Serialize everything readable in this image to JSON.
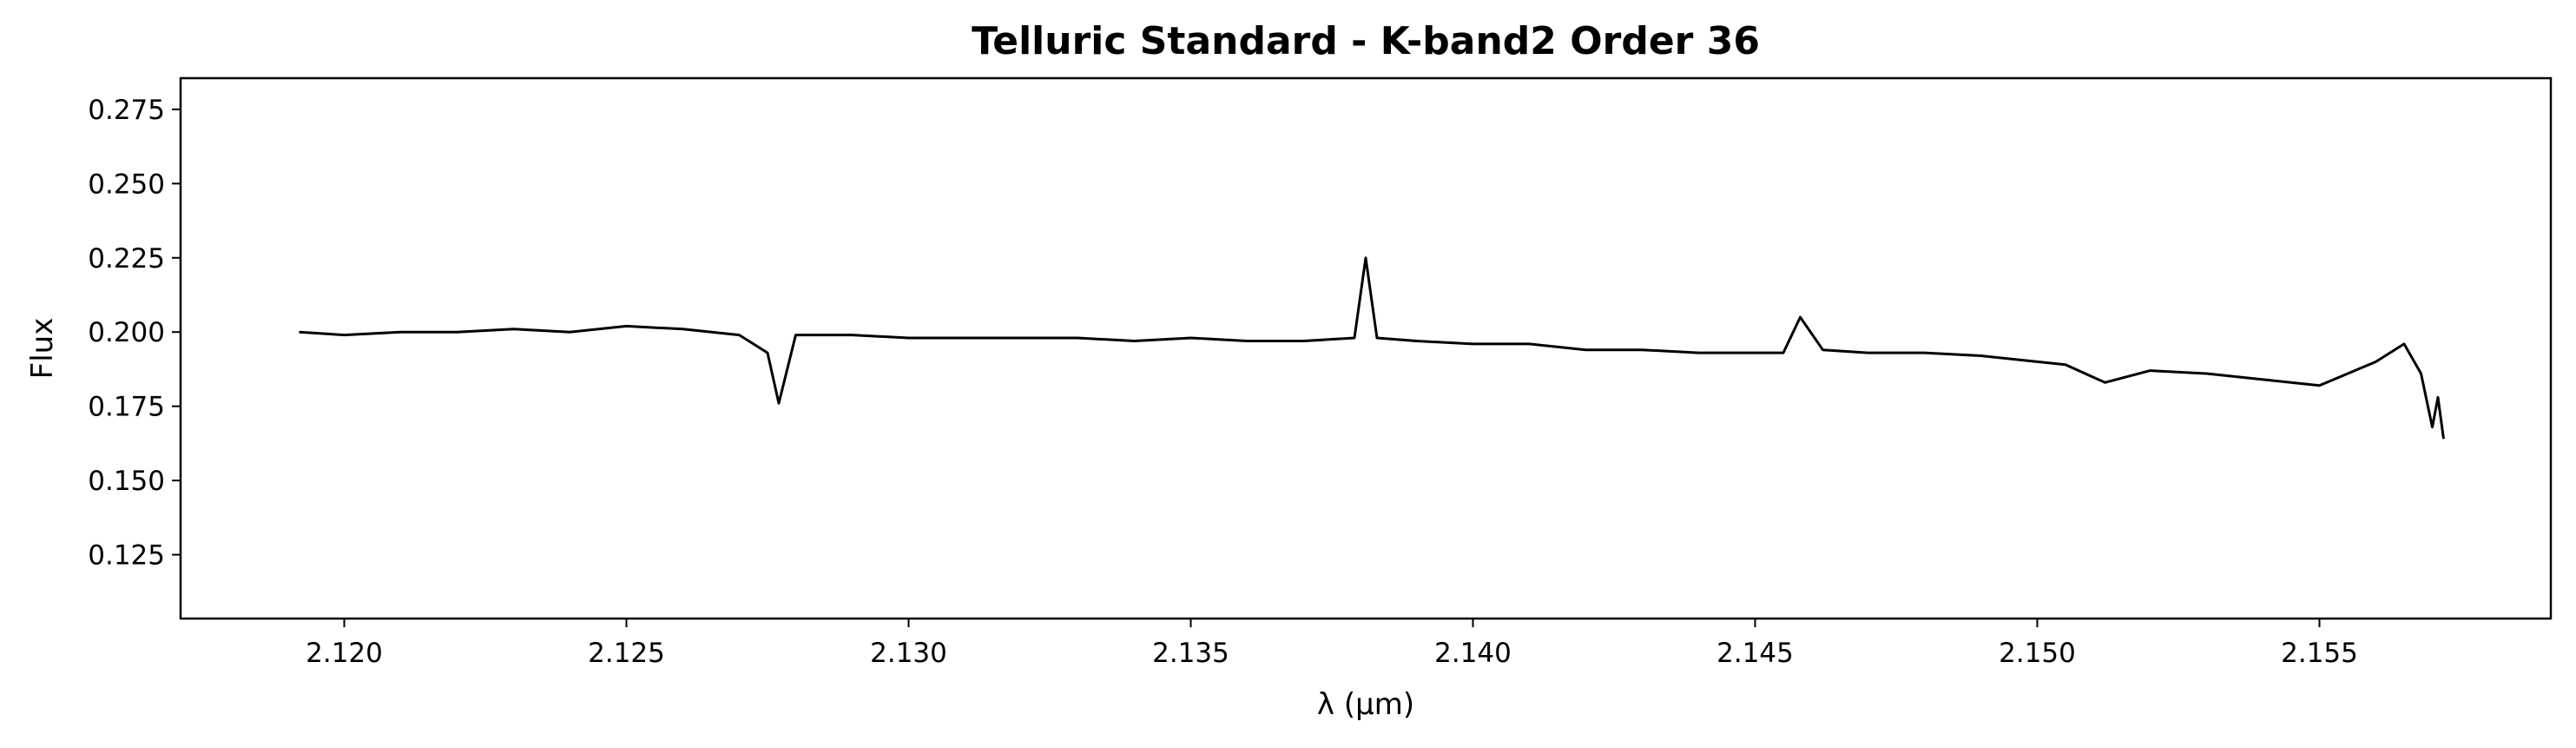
{
  "chart_data": {
    "type": "line",
    "title": "Telluric Standard - K-band2 Order 36",
    "xlabel": "λ (μm)",
    "ylabel": "Flux",
    "xlim": [
      2.1171,
      2.1591
    ],
    "ylim": [
      0.1035,
      0.2855
    ],
    "xticks": [
      "2.120",
      "2.125",
      "2.130",
      "2.135",
      "2.140",
      "2.145",
      "2.150",
      "2.155"
    ],
    "yticks": [
      "0.125",
      "0.150",
      "0.175",
      "0.200",
      "0.225",
      "0.250",
      "0.275"
    ],
    "grid": false,
    "line_color": "#000000",
    "series": [
      {
        "x": [
          2.1192,
          2.12,
          2.121,
          2.122,
          2.123,
          2.124,
          2.125,
          2.126,
          2.127,
          2.1275,
          2.1277,
          2.128,
          2.129,
          2.13,
          2.131,
          2.132,
          2.133,
          2.134,
          2.135,
          2.136,
          2.137,
          2.1379,
          2.1381,
          2.1383,
          2.139,
          2.14,
          2.141,
          2.142,
          2.143,
          2.144,
          2.145,
          2.1455,
          2.1458,
          2.1462,
          2.147,
          2.148,
          2.149,
          2.15,
          2.1505,
          2.1512,
          2.152,
          2.153,
          2.154,
          2.155,
          2.156,
          2.1565,
          2.1568,
          2.157,
          2.1571,
          2.1572
        ],
        "y": [
          0.2,
          0.199,
          0.2,
          0.2,
          0.201,
          0.2,
          0.202,
          0.201,
          0.199,
          0.193,
          0.176,
          0.199,
          0.199,
          0.198,
          0.198,
          0.198,
          0.198,
          0.197,
          0.198,
          0.197,
          0.197,
          0.198,
          0.225,
          0.198,
          0.197,
          0.196,
          0.196,
          0.194,
          0.194,
          0.193,
          0.193,
          0.193,
          0.205,
          0.194,
          0.193,
          0.193,
          0.192,
          0.19,
          0.189,
          0.183,
          0.187,
          0.186,
          0.184,
          0.182,
          0.19,
          0.196,
          0.186,
          0.168,
          0.178,
          0.164
        ]
      }
    ]
  }
}
